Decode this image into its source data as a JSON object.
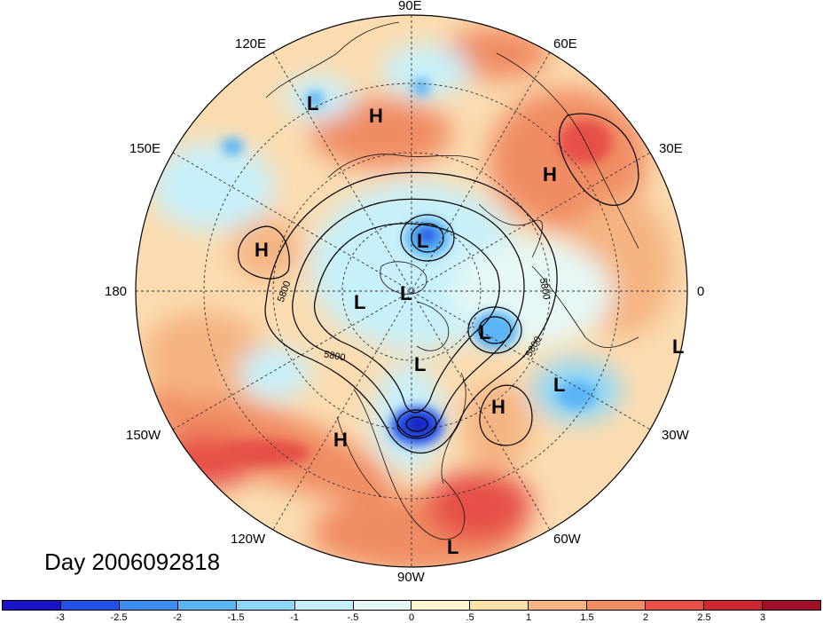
{
  "title": "Day 2006092818",
  "longitude_labels": [
    {
      "text": "90E",
      "pos": "top"
    },
    {
      "text": "120E",
      "pos": "upper-left"
    },
    {
      "text": "60E",
      "pos": "upper-right"
    },
    {
      "text": "150E",
      "pos": "left-upper"
    },
    {
      "text": "30E",
      "pos": "right-upper"
    },
    {
      "text": "180",
      "pos": "left"
    },
    {
      "text": "0",
      "pos": "right"
    },
    {
      "text": "150W",
      "pos": "left-lower"
    },
    {
      "text": "30W",
      "pos": "right-lower"
    },
    {
      "text": "120W",
      "pos": "lower-left"
    },
    {
      "text": "60W",
      "pos": "lower-right"
    },
    {
      "text": "90W",
      "pos": "bottom"
    }
  ],
  "pressure_centers": [
    {
      "type": "L",
      "label": "L"
    },
    {
      "type": "H",
      "label": "H"
    },
    {
      "type": "H",
      "label": "H"
    },
    {
      "type": "H",
      "label": "H"
    },
    {
      "type": "L",
      "label": "L"
    },
    {
      "type": "L",
      "label": "L"
    },
    {
      "type": "L",
      "label": "L"
    },
    {
      "type": "L",
      "label": "L"
    },
    {
      "type": "L",
      "label": "L"
    },
    {
      "type": "L",
      "label": "L"
    },
    {
      "type": "L",
      "label": "L"
    },
    {
      "type": "H",
      "label": "H"
    },
    {
      "type": "H",
      "label": "H"
    },
    {
      "type": "L",
      "label": "L"
    }
  ],
  "contour_labels": [
    "5800",
    "5800",
    "5800",
    "5800"
  ],
  "colorbar": {
    "colors": [
      "#1a14c8",
      "#2350e6",
      "#3c8cf0",
      "#5ab4f5",
      "#8cd7fa",
      "#c8f0fa",
      "#e6f8f5",
      "#fff5d2",
      "#fae1a5",
      "#f5b482",
      "#f08c64",
      "#e65046",
      "#cd2832",
      "#a00f28"
    ],
    "ticks": [
      "-3",
      "-2.5",
      "-2",
      "-1.5",
      "-1",
      "-.5",
      "0",
      ".5",
      "1",
      "1.5",
      "2",
      "2.5",
      "3"
    ]
  }
}
